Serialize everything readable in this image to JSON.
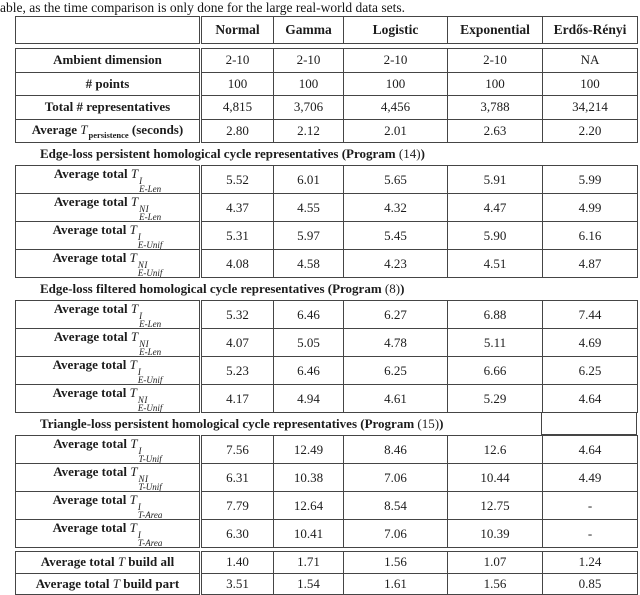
{
  "page": {
    "top_text": "able, as the time comparison is only done for the large real-world data sets."
  },
  "table": {
    "columns": [
      "Normal",
      "Gamma",
      "Logistic",
      "Exponential",
      "Erdős-Rényi"
    ],
    "stats_rows": [
      {
        "label_parts": [
          {
            "t": "bold",
            "v": "Ambient dimension"
          }
        ],
        "values": [
          "2-10",
          "2-10",
          "2-10",
          "2-10",
          "NA"
        ]
      },
      {
        "label_parts": [
          {
            "t": "bold",
            "v": "# points"
          }
        ],
        "values": [
          "100",
          "100",
          "100",
          "100",
          "100"
        ]
      },
      {
        "label_parts": [
          {
            "t": "bold",
            "v": "Total # representatives"
          }
        ],
        "values": [
          "4,815",
          "3,706",
          "4,456",
          "3,788",
          "34,214"
        ]
      },
      {
        "label_parts": [
          {
            "t": "bold",
            "v": "Average "
          },
          {
            "t": "math",
            "base": "T",
            "sub": "persistence",
            "subBold": true
          },
          {
            "t": "bold",
            "v": " (seconds)"
          }
        ],
        "values": [
          "2.80",
          "2.12",
          "2.01",
          "2.63",
          "2.20"
        ]
      }
    ],
    "sections": [
      {
        "heading": {
          "bold": "Edge-loss persistent homological cycle representatives (Program ",
          "ref": "(14)",
          "close": ")"
        },
        "rows": [
          {
            "label_parts": [
              {
                "t": "bold",
                "v": "Average total "
              },
              {
                "t": "math",
                "base": "T",
                "sup": "I",
                "sub": "E-Len"
              }
            ],
            "values": [
              "5.52",
              "6.01",
              "5.65",
              "5.91",
              "5.99"
            ]
          },
          {
            "label_parts": [
              {
                "t": "bold",
                "v": "Average total "
              },
              {
                "t": "math",
                "base": "T",
                "sup": "NI",
                "sub": "E-Len"
              }
            ],
            "values": [
              "4.37",
              "4.55",
              "4.32",
              "4.47",
              "4.99"
            ]
          },
          {
            "label_parts": [
              {
                "t": "bold",
                "v": "Average total "
              },
              {
                "t": "math",
                "base": "T",
                "sup": "I",
                "sub": "E-Unif"
              }
            ],
            "values": [
              "5.31",
              "5.97",
              "5.45",
              "5.90",
              "6.16"
            ]
          },
          {
            "label_parts": [
              {
                "t": "bold",
                "v": "Average total "
              },
              {
                "t": "math",
                "base": "T",
                "sup": "NI",
                "sub": "E-Unif"
              }
            ],
            "values": [
              "4.08",
              "4.58",
              "4.23",
              "4.51",
              "4.87"
            ]
          }
        ]
      },
      {
        "heading": {
          "bold": "Edge-loss filtered homological cycle representatives (Program ",
          "ref": "(8)",
          "close": ")"
        },
        "rows": [
          {
            "label_parts": [
              {
                "t": "bold",
                "v": "Average total "
              },
              {
                "t": "math",
                "base": "T",
                "sup": "I",
                "sub": "E-Len"
              }
            ],
            "values": [
              "5.32",
              "6.46",
              "6.27",
              "6.88",
              "7.44"
            ]
          },
          {
            "label_parts": [
              {
                "t": "bold",
                "v": "Average total "
              },
              {
                "t": "math",
                "base": "T",
                "sup": "NI",
                "sub": "E-Len"
              }
            ],
            "values": [
              "4.07",
              "5.05",
              "4.78",
              "5.11",
              "4.69"
            ]
          },
          {
            "label_parts": [
              {
                "t": "bold",
                "v": "Average total "
              },
              {
                "t": "math",
                "base": "T",
                "sup": "I",
                "sub": "E-Unif"
              }
            ],
            "values": [
              "5.23",
              "6.46",
              "6.25",
              "6.66",
              "6.25"
            ]
          },
          {
            "label_parts": [
              {
                "t": "bold",
                "v": "Average total "
              },
              {
                "t": "math",
                "base": "T",
                "sup": "NI",
                "sub": "E-Unif"
              }
            ],
            "values": [
              "4.17",
              "4.94",
              "4.61",
              "5.29",
              "4.64"
            ]
          }
        ]
      },
      {
        "heading": {
          "bold": "Triangle-loss persistent homological cycle representatives (Program ",
          "ref": "(15)",
          "close": ")"
        },
        "rows": [
          {
            "label_parts": [
              {
                "t": "bold",
                "v": "Average total "
              },
              {
                "t": "math",
                "base": "T",
                "sup": "I",
                "sub": "T-Unif"
              }
            ],
            "values": [
              "7.56",
              "12.49",
              "8.46",
              "12.6",
              "4.64"
            ]
          },
          {
            "label_parts": [
              {
                "t": "bold",
                "v": "Average total "
              },
              {
                "t": "math",
                "base": "T",
                "sup": "NI",
                "sub": "T-Unif"
              }
            ],
            "values": [
              "6.31",
              "10.38",
              "7.06",
              "10.44",
              "4.49"
            ]
          },
          {
            "label_parts": [
              {
                "t": "bold",
                "v": "Average total "
              },
              {
                "t": "math",
                "base": "T",
                "sup": "I",
                "sub": "T-Area"
              }
            ],
            "values": [
              "7.79",
              "12.64",
              "8.54",
              "12.75",
              "-"
            ]
          },
          {
            "label_parts": [
              {
                "t": "bold",
                "v": "Average total "
              },
              {
                "t": "math",
                "base": "T",
                "sup": "I",
                "sub": "T-Area"
              }
            ],
            "values": [
              "6.30",
              "10.41",
              "7.06",
              "10.39",
              "-"
            ]
          }
        ]
      }
    ],
    "footer_rows": [
      {
        "label_parts": [
          {
            "t": "bold",
            "v": "Average total "
          },
          {
            "t": "math",
            "base": "T"
          },
          {
            "t": "bold",
            "v": " build all"
          }
        ],
        "values": [
          "1.40",
          "1.71",
          "1.56",
          "1.07",
          "1.24"
        ]
      },
      {
        "label_parts": [
          {
            "t": "bold",
            "v": "Average total "
          },
          {
            "t": "math",
            "base": "T"
          },
          {
            "t": "bold",
            "v": " build part"
          }
        ],
        "values": [
          "3.51",
          "1.54",
          "1.61",
          "1.56",
          "0.85"
        ]
      }
    ]
  }
}
